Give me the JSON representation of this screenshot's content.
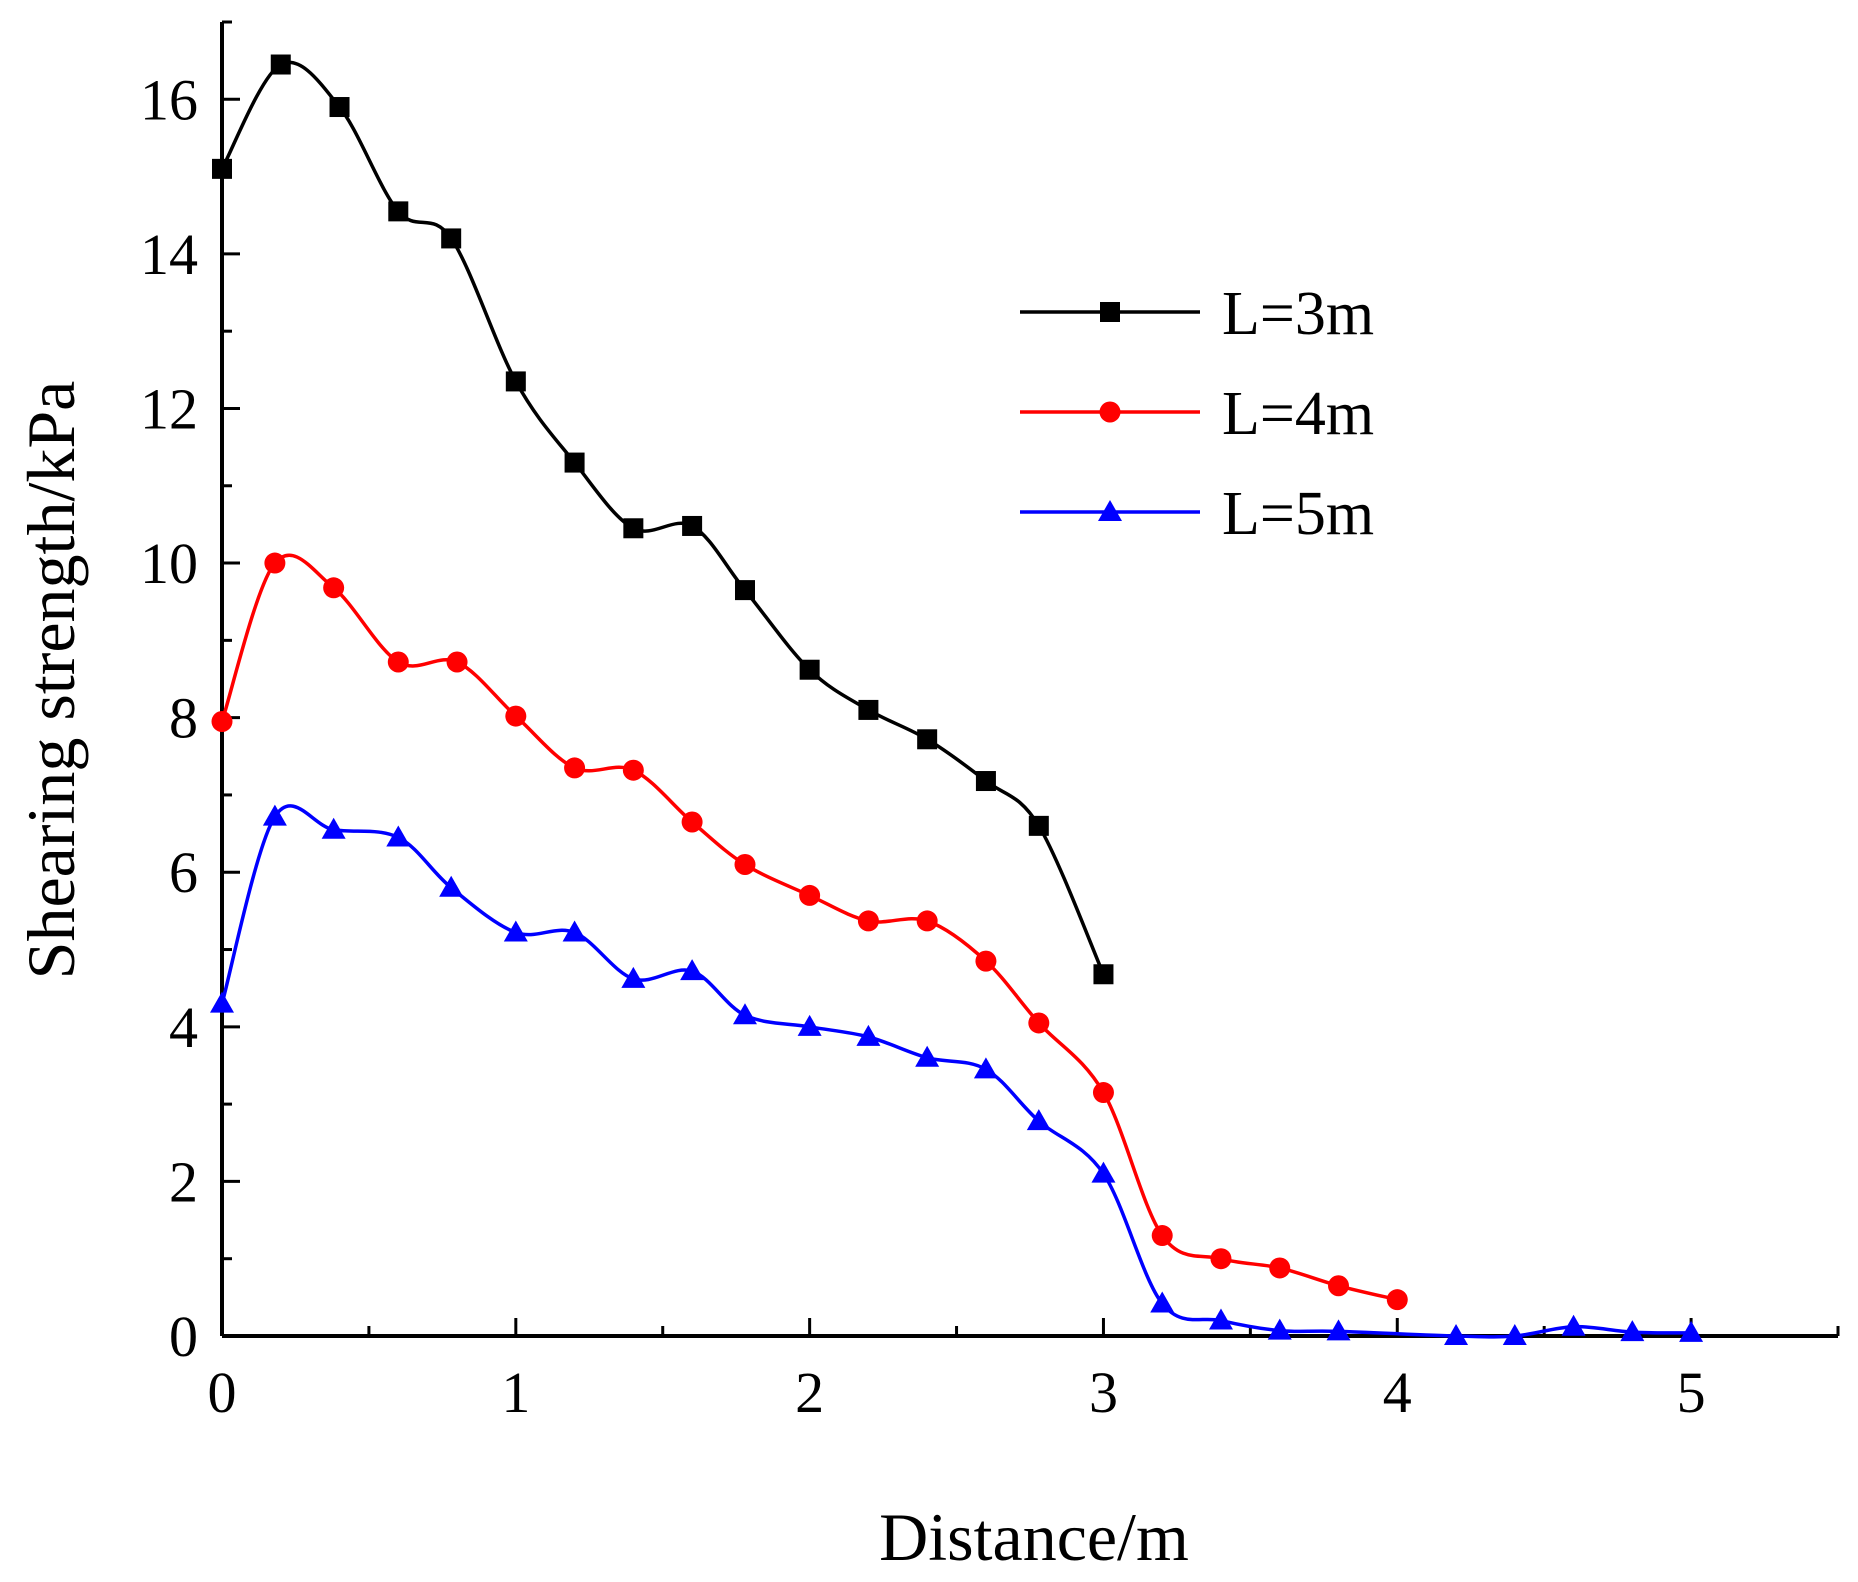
{
  "chart_data": {
    "type": "line",
    "title": "",
    "xlabel": "Distance/m",
    "ylabel": "Shearing strength/kPa",
    "xlim": [
      0,
      5.5
    ],
    "ylim": [
      0,
      17
    ],
    "x_ticks": [
      0,
      1,
      2,
      3,
      4,
      5
    ],
    "y_ticks": [
      0,
      2,
      4,
      6,
      8,
      10,
      12,
      14,
      16
    ],
    "x_tick_labels": [
      "0",
      "1",
      "2",
      "3",
      "4",
      "5"
    ],
    "y_tick_labels": [
      "0",
      "2",
      "4",
      "6",
      "8",
      "10",
      "12",
      "14",
      "16"
    ],
    "grid": false,
    "legend_position": "upper-right",
    "series": [
      {
        "name": "L=3m",
        "color": "#000000",
        "marker": "square",
        "x": [
          0,
          0.2,
          0.4,
          0.6,
          0.78,
          1.0,
          1.2,
          1.4,
          1.6,
          1.78,
          2.0,
          2.2,
          2.4,
          2.6,
          2.78,
          3.0
        ],
        "y": [
          15.1,
          16.45,
          15.9,
          14.55,
          14.2,
          12.35,
          11.3,
          10.45,
          10.48,
          9.65,
          8.62,
          8.1,
          7.72,
          7.18,
          6.6,
          4.68
        ]
      },
      {
        "name": "L=4m",
        "color": "#ff0000",
        "marker": "circle",
        "x": [
          0,
          0.18,
          0.38,
          0.6,
          0.8,
          1.0,
          1.2,
          1.4,
          1.6,
          1.78,
          2.0,
          2.2,
          2.4,
          2.6,
          2.78,
          3.0,
          3.2,
          3.4,
          3.6,
          3.8,
          4.0
        ],
        "y": [
          7.95,
          10.0,
          9.68,
          8.72,
          8.72,
          8.02,
          7.35,
          7.32,
          6.65,
          6.1,
          5.7,
          5.37,
          5.37,
          4.85,
          4.05,
          3.15,
          1.3,
          1.0,
          0.88,
          0.65,
          0.47
        ]
      },
      {
        "name": "L=5m",
        "color": "#0000ff",
        "marker": "triangle",
        "x": [
          0,
          0.18,
          0.38,
          0.6,
          0.78,
          1.0,
          1.2,
          1.4,
          1.6,
          1.78,
          2.0,
          2.2,
          2.4,
          2.6,
          2.78,
          3.0,
          3.2,
          3.4,
          3.6,
          3.8,
          4.2,
          4.4,
          4.6,
          4.8,
          5.0
        ],
        "y": [
          4.3,
          6.72,
          6.55,
          6.45,
          5.8,
          5.22,
          5.22,
          4.62,
          4.72,
          4.15,
          4.0,
          3.87,
          3.6,
          3.45,
          2.78,
          2.1,
          0.42,
          0.2,
          0.07,
          0.06,
          0.0,
          0.0,
          0.12,
          0.05,
          0.04
        ]
      }
    ]
  }
}
